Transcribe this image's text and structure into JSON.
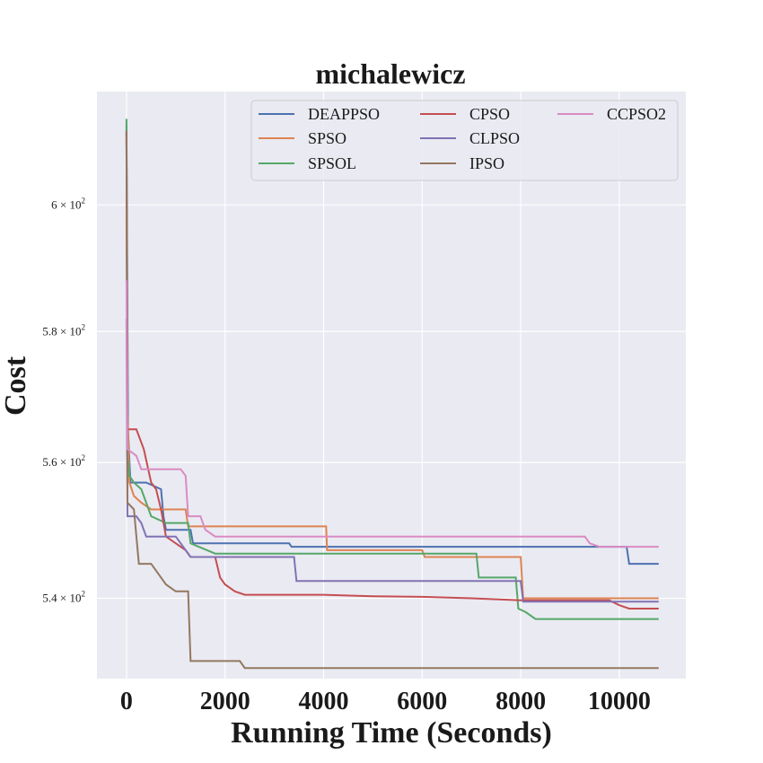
{
  "chart_data": {
    "type": "line",
    "title": "michalewicz",
    "xlabel": "Running Time (Seconds)",
    "ylabel": "Cost",
    "xscale": "linear",
    "yscale": "log",
    "xlim": [
      -600,
      11350
    ],
    "ylim": [
      528.5,
      618.5
    ],
    "xticks": [
      0,
      2000,
      4000,
      6000,
      8000,
      10000
    ],
    "xtick_labels": [
      "0",
      "2000",
      "4000",
      "6000",
      "8000",
      "10000"
    ],
    "yticks": [
      540,
      560,
      580,
      600
    ],
    "ytick_labels": [
      {
        "base": "5.4 × 10",
        "exp": "2"
      },
      {
        "base": "5.6 × 10",
        "exp": "2"
      },
      {
        "base": "5.8 × 10",
        "exp": "2"
      },
      {
        "base": "6 × 10",
        "exp": "2"
      }
    ],
    "grid": true,
    "legend_position": "top-right",
    "legend_columns": 3,
    "series": [
      {
        "name": "DEAPPSO",
        "color": "#4c72b0",
        "points": [
          [
            0,
            613
          ],
          [
            30,
            565
          ],
          [
            80,
            557
          ],
          [
            400,
            557
          ],
          [
            700,
            556
          ],
          [
            750,
            552
          ],
          [
            800,
            550
          ],
          [
            1300,
            550
          ],
          [
            1350,
            548
          ],
          [
            3300,
            548
          ],
          [
            3350,
            547.5
          ],
          [
            10150,
            547.5
          ],
          [
            10200,
            545
          ],
          [
            10800,
            545
          ]
        ]
      },
      {
        "name": "SPSO",
        "color": "#dd8452",
        "points": [
          [
            0,
            612
          ],
          [
            20,
            568
          ],
          [
            60,
            557
          ],
          [
            150,
            555
          ],
          [
            300,
            554
          ],
          [
            500,
            553
          ],
          [
            1200,
            553
          ],
          [
            1250,
            550.5
          ],
          [
            4050,
            550.5
          ],
          [
            4070,
            547
          ],
          [
            6000,
            547
          ],
          [
            6050,
            546
          ],
          [
            8000,
            546
          ],
          [
            8050,
            540
          ],
          [
            10800,
            540
          ]
        ]
      },
      {
        "name": "SPSOL",
        "color": "#55a868",
        "points": [
          [
            0,
            614
          ],
          [
            15,
            561
          ],
          [
            60,
            558
          ],
          [
            150,
            557
          ],
          [
            300,
            556
          ],
          [
            500,
            552
          ],
          [
            800,
            551
          ],
          [
            1250,
            551
          ],
          [
            1300,
            548
          ],
          [
            1800,
            546.5
          ],
          [
            7100,
            546.5
          ],
          [
            7150,
            543
          ],
          [
            7900,
            543
          ],
          [
            7950,
            538.5
          ],
          [
            8100,
            538
          ],
          [
            8300,
            537
          ],
          [
            10800,
            537
          ]
        ]
      },
      {
        "name": "CPSO",
        "color": "#c44e52",
        "points": [
          [
            0,
            612
          ],
          [
            20,
            565
          ],
          [
            200,
            565
          ],
          [
            350,
            562
          ],
          [
            500,
            557
          ],
          [
            600,
            556
          ],
          [
            700,
            553
          ],
          [
            800,
            549
          ],
          [
            1000,
            548
          ],
          [
            1200,
            547
          ],
          [
            1300,
            546
          ],
          [
            1800,
            546
          ],
          [
            1900,
            543
          ],
          [
            2000,
            542
          ],
          [
            2200,
            541
          ],
          [
            2400,
            540.5
          ],
          [
            4000,
            540.5
          ],
          [
            5000,
            540.3
          ],
          [
            6000,
            540.2
          ],
          [
            7000,
            540
          ],
          [
            8000,
            539.7
          ],
          [
            9800,
            539.7
          ],
          [
            10000,
            539
          ],
          [
            10200,
            538.5
          ],
          [
            10800,
            538.5
          ]
        ]
      },
      {
        "name": "CLPSO",
        "color": "#8172b3",
        "points": [
          [
            0,
            582
          ],
          [
            20,
            552
          ],
          [
            200,
            552
          ],
          [
            300,
            551
          ],
          [
            400,
            549
          ],
          [
            1000,
            549
          ],
          [
            1300,
            546
          ],
          [
            3400,
            546
          ],
          [
            3450,
            542.5
          ],
          [
            8000,
            542.5
          ],
          [
            8050,
            539.5
          ],
          [
            10800,
            539.5
          ]
        ]
      },
      {
        "name": "IPSO",
        "color": "#937860",
        "points": [
          [
            0,
            612
          ],
          [
            20,
            554
          ],
          [
            150,
            553
          ],
          [
            250,
            545
          ],
          [
            500,
            545
          ],
          [
            700,
            543
          ],
          [
            800,
            542
          ],
          [
            1000,
            541
          ],
          [
            1250,
            541
          ],
          [
            1300,
            531
          ],
          [
            2300,
            531
          ],
          [
            2400,
            530
          ],
          [
            10800,
            530
          ]
        ]
      },
      {
        "name": "CCPSO2",
        "color": "#da8bc3",
        "points": [
          [
            0,
            588
          ],
          [
            20,
            562
          ],
          [
            200,
            561
          ],
          [
            300,
            559
          ],
          [
            1100,
            559
          ],
          [
            1200,
            558
          ],
          [
            1250,
            552
          ],
          [
            1500,
            552
          ],
          [
            1600,
            550
          ],
          [
            1800,
            549
          ],
          [
            9300,
            549
          ],
          [
            9400,
            548
          ],
          [
            9600,
            547.5
          ],
          [
            10800,
            547.5
          ]
        ]
      }
    ]
  }
}
